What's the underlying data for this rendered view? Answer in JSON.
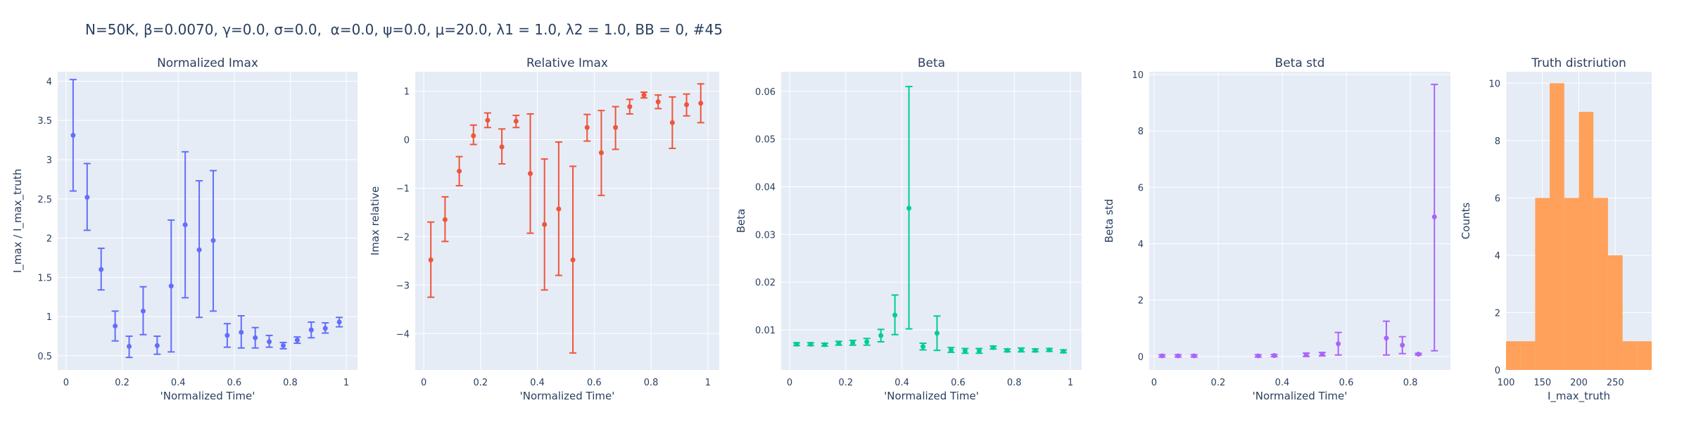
{
  "title": "N=50K, β=0.0070, γ=0.0, σ=0.0,  α=0.0, ψ=0.0, μ=20.0, λ1 = 1.0, λ2 = 1.0, BB = 0, #45",
  "colors": {
    "plot_bg": "#e5ecf6",
    "grid": "#ffffff",
    "text": "#2a3f5f"
  },
  "chart_data": [
    {
      "type": "scatter",
      "title": "Normalized Imax",
      "xlabel": "'Normalized Time'",
      "ylabel": "I_max / I_max_truth",
      "color": "#636efa",
      "xlim": [
        -0.03,
        1.04
      ],
      "ylim": [
        0.32,
        4.12
      ],
      "xticks": [
        0,
        0.2,
        0.4,
        0.6,
        0.8,
        1
      ],
      "xtick_labels": [
        "0",
        "0.2",
        "0.4",
        "0.6",
        "0.8",
        "1"
      ],
      "yticks": [
        0.5,
        1,
        1.5,
        2,
        2.5,
        3,
        3.5,
        4
      ],
      "ytick_labels": [
        "0.5",
        "1",
        "1.5",
        "2",
        "2.5",
        "3",
        "3.5",
        "4"
      ],
      "points": [
        {
          "x": 0.025,
          "y": 3.31,
          "lo": 2.6,
          "hi": 4.02
        },
        {
          "x": 0.075,
          "y": 2.52,
          "lo": 2.1,
          "hi": 2.95
        },
        {
          "x": 0.125,
          "y": 1.6,
          "lo": 1.34,
          "hi": 1.87
        },
        {
          "x": 0.175,
          "y": 0.88,
          "lo": 0.69,
          "hi": 1.07
        },
        {
          "x": 0.225,
          "y": 0.62,
          "lo": 0.48,
          "hi": 0.75
        },
        {
          "x": 0.275,
          "y": 1.07,
          "lo": 0.77,
          "hi": 1.38
        },
        {
          "x": 0.325,
          "y": 0.63,
          "lo": 0.52,
          "hi": 0.75
        },
        {
          "x": 0.375,
          "y": 1.39,
          "lo": 0.55,
          "hi": 2.23
        },
        {
          "x": 0.425,
          "y": 2.17,
          "lo": 1.24,
          "hi": 3.1
        },
        {
          "x": 0.475,
          "y": 1.85,
          "lo": 0.99,
          "hi": 2.73
        },
        {
          "x": 0.525,
          "y": 1.97,
          "lo": 1.07,
          "hi": 2.86
        },
        {
          "x": 0.575,
          "y": 0.76,
          "lo": 0.61,
          "hi": 0.91
        },
        {
          "x": 0.625,
          "y": 0.8,
          "lo": 0.6,
          "hi": 1.01
        },
        {
          "x": 0.675,
          "y": 0.73,
          "lo": 0.6,
          "hi": 0.86
        },
        {
          "x": 0.725,
          "y": 0.68,
          "lo": 0.61,
          "hi": 0.76
        },
        {
          "x": 0.775,
          "y": 0.63,
          "lo": 0.59,
          "hi": 0.67
        },
        {
          "x": 0.825,
          "y": 0.7,
          "lo": 0.66,
          "hi": 0.74
        },
        {
          "x": 0.875,
          "y": 0.83,
          "lo": 0.73,
          "hi": 0.93
        },
        {
          "x": 0.925,
          "y": 0.85,
          "lo": 0.79,
          "hi": 0.92
        },
        {
          "x": 0.975,
          "y": 0.93,
          "lo": 0.87,
          "hi": 0.99
        }
      ]
    },
    {
      "type": "scatter",
      "title": "Relative Imax",
      "xlabel": "'Normalized Time'",
      "ylabel": "Imax relative",
      "color": "#ef553b",
      "xlim": [
        -0.03,
        1.04
      ],
      "ylim": [
        -4.75,
        1.4
      ],
      "xticks": [
        0,
        0.2,
        0.4,
        0.6,
        0.8,
        1
      ],
      "xtick_labels": [
        "0",
        "0.2",
        "0.4",
        "0.6",
        "0.8",
        "1"
      ],
      "yticks": [
        -4,
        -3,
        -2,
        -1,
        0,
        1
      ],
      "ytick_labels": [
        "−4",
        "−3",
        "−2",
        "−1",
        "0",
        "1"
      ],
      "points": [
        {
          "x": 0.025,
          "y": -2.48,
          "lo": -3.25,
          "hi": -1.7
        },
        {
          "x": 0.075,
          "y": -1.65,
          "lo": -2.1,
          "hi": -1.18
        },
        {
          "x": 0.125,
          "y": -0.65,
          "lo": -0.95,
          "hi": -0.35
        },
        {
          "x": 0.175,
          "y": 0.08,
          "lo": -0.1,
          "hi": 0.3
        },
        {
          "x": 0.225,
          "y": 0.4,
          "lo": 0.25,
          "hi": 0.55
        },
        {
          "x": 0.275,
          "y": -0.15,
          "lo": -0.5,
          "hi": 0.22
        },
        {
          "x": 0.325,
          "y": 0.38,
          "lo": 0.25,
          "hi": 0.5
        },
        {
          "x": 0.375,
          "y": -0.7,
          "lo": -1.93,
          "hi": 0.53
        },
        {
          "x": 0.425,
          "y": -1.75,
          "lo": -3.1,
          "hi": -0.4
        },
        {
          "x": 0.475,
          "y": -1.43,
          "lo": -2.8,
          "hi": -0.05
        },
        {
          "x": 0.525,
          "y": -2.48,
          "lo": -4.4,
          "hi": -0.55
        },
        {
          "x": 0.575,
          "y": 0.25,
          "lo": -0.03,
          "hi": 0.52
        },
        {
          "x": 0.625,
          "y": -0.27,
          "lo": -1.15,
          "hi": 0.6
        },
        {
          "x": 0.675,
          "y": 0.25,
          "lo": -0.2,
          "hi": 0.68
        },
        {
          "x": 0.725,
          "y": 0.68,
          "lo": 0.53,
          "hi": 0.83
        },
        {
          "x": 0.775,
          "y": 0.92,
          "lo": 0.86,
          "hi": 0.98
        },
        {
          "x": 0.825,
          "y": 0.78,
          "lo": 0.64,
          "hi": 0.92
        },
        {
          "x": 0.875,
          "y": 0.35,
          "lo": -0.18,
          "hi": 0.88
        },
        {
          "x": 0.925,
          "y": 0.72,
          "lo": 0.49,
          "hi": 0.94
        },
        {
          "x": 0.975,
          "y": 0.75,
          "lo": 0.35,
          "hi": 1.15
        }
      ]
    },
    {
      "type": "scatter",
      "title": "Beta",
      "xlabel": "'Normalized Time'",
      "ylabel": "Beta",
      "color": "#00cc96",
      "xlim": [
        -0.03,
        1.04
      ],
      "ylim": [
        0.0016,
        0.0641
      ],
      "xticks": [
        0,
        0.2,
        0.4,
        0.6,
        0.8,
        1
      ],
      "xtick_labels": [
        "0",
        "0.2",
        "0.4",
        "0.6",
        "0.8",
        "1"
      ],
      "yticks": [
        0.01,
        0.02,
        0.03,
        0.04,
        0.05,
        0.06
      ],
      "ytick_labels": [
        "0.01",
        "0.02",
        "0.03",
        "0.04",
        "0.05",
        "0.06"
      ],
      "points": [
        {
          "x": 0.025,
          "y": 0.007,
          "lo": 0.0067,
          "hi": 0.0073
        },
        {
          "x": 0.075,
          "y": 0.007,
          "lo": 0.0067,
          "hi": 0.0073
        },
        {
          "x": 0.125,
          "y": 0.0069,
          "lo": 0.0066,
          "hi": 0.0072
        },
        {
          "x": 0.175,
          "y": 0.0072,
          "lo": 0.0068,
          "hi": 0.0076
        },
        {
          "x": 0.225,
          "y": 0.0073,
          "lo": 0.0068,
          "hi": 0.0078
        },
        {
          "x": 0.275,
          "y": 0.0075,
          "lo": 0.0068,
          "hi": 0.0082
        },
        {
          "x": 0.325,
          "y": 0.0088,
          "lo": 0.0075,
          "hi": 0.0101
        },
        {
          "x": 0.375,
          "y": 0.0131,
          "lo": 0.009,
          "hi": 0.0173
        },
        {
          "x": 0.425,
          "y": 0.0355,
          "lo": 0.0102,
          "hi": 0.061
        },
        {
          "x": 0.475,
          "y": 0.0065,
          "lo": 0.0058,
          "hi": 0.0072
        },
        {
          "x": 0.525,
          "y": 0.0093,
          "lo": 0.0057,
          "hi": 0.0129
        },
        {
          "x": 0.575,
          "y": 0.0058,
          "lo": 0.0053,
          "hi": 0.0063
        },
        {
          "x": 0.625,
          "y": 0.0056,
          "lo": 0.0051,
          "hi": 0.0061
        },
        {
          "x": 0.675,
          "y": 0.0056,
          "lo": 0.0051,
          "hi": 0.0061
        },
        {
          "x": 0.725,
          "y": 0.0063,
          "lo": 0.006,
          "hi": 0.0066
        },
        {
          "x": 0.775,
          "y": 0.0057,
          "lo": 0.0054,
          "hi": 0.006
        },
        {
          "x": 0.825,
          "y": 0.0058,
          "lo": 0.0054,
          "hi": 0.0062
        },
        {
          "x": 0.875,
          "y": 0.0057,
          "lo": 0.0054,
          "hi": 0.006
        },
        {
          "x": 0.925,
          "y": 0.0058,
          "lo": 0.0055,
          "hi": 0.0061
        },
        {
          "x": 0.975,
          "y": 0.0055,
          "lo": 0.0052,
          "hi": 0.0058
        }
      ]
    },
    {
      "type": "scatter",
      "title": "Beta std",
      "xlabel": "'Normalized Time'",
      "ylabel": "Beta std",
      "color": "#ab63fa",
      "xlim": [
        -0.015,
        0.925
      ],
      "ylim": [
        -0.48,
        10.1
      ],
      "xticks": [
        0,
        0.2,
        0.4,
        0.6,
        0.8
      ],
      "xtick_labels": [
        "0",
        "0.2",
        "0.4",
        "0.6",
        "0.8"
      ],
      "yticks": [
        0,
        2,
        4,
        6,
        8,
        10
      ],
      "ytick_labels": [
        "0",
        "2",
        "4",
        "6",
        "8",
        "10"
      ],
      "points": [
        {
          "x": 0.025,
          "y": 0.02,
          "lo": -0.02,
          "hi": 0.06
        },
        {
          "x": 0.075,
          "y": 0.02,
          "lo": -0.02,
          "hi": 0.06
        },
        {
          "x": 0.125,
          "y": 0.02,
          "lo": -0.02,
          "hi": 0.06
        },
        {
          "x": 0.325,
          "y": 0.02,
          "lo": -0.02,
          "hi": 0.06
        },
        {
          "x": 0.375,
          "y": 0.03,
          "lo": -0.01,
          "hi": 0.07
        },
        {
          "x": 0.475,
          "y": 0.06,
          "lo": 0.0,
          "hi": 0.12
        },
        {
          "x": 0.525,
          "y": 0.08,
          "lo": 0.02,
          "hi": 0.14
        },
        {
          "x": 0.575,
          "y": 0.45,
          "lo": 0.05,
          "hi": 0.85
        },
        {
          "x": 0.725,
          "y": 0.65,
          "lo": 0.05,
          "hi": 1.25
        },
        {
          "x": 0.775,
          "y": 0.4,
          "lo": 0.1,
          "hi": 0.7
        },
        {
          "x": 0.825,
          "y": 0.08,
          "lo": 0.05,
          "hi": 0.11
        },
        {
          "x": 0.875,
          "y": 4.95,
          "lo": 0.2,
          "hi": 9.65
        }
      ]
    },
    {
      "type": "bar",
      "title": "Truth distriution",
      "xlabel": "I_max_truth",
      "ylabel": "Counts",
      "color": "#ffa15a",
      "xlim": [
        100,
        300
      ],
      "ylim": [
        0,
        10.4
      ],
      "xticks": [
        100,
        150,
        200,
        250
      ],
      "xtick_labels": [
        "100",
        "150",
        "200",
        "250"
      ],
      "yticks": [
        0,
        2,
        4,
        6,
        8,
        10
      ],
      "ytick_labels": [
        "0",
        "2",
        "4",
        "6",
        "8",
        "10"
      ],
      "bins": [
        {
          "start": 100,
          "end": 120,
          "count": 1
        },
        {
          "start": 120,
          "end": 140,
          "count": 1
        },
        {
          "start": 140,
          "end": 160,
          "count": 6
        },
        {
          "start": 160,
          "end": 180,
          "count": 10
        },
        {
          "start": 180,
          "end": 200,
          "count": 6
        },
        {
          "start": 200,
          "end": 220,
          "count": 9
        },
        {
          "start": 220,
          "end": 240,
          "count": 6
        },
        {
          "start": 240,
          "end": 260,
          "count": 4
        },
        {
          "start": 260,
          "end": 280,
          "count": 1
        },
        {
          "start": 280,
          "end": 300,
          "count": 1
        }
      ]
    }
  ]
}
